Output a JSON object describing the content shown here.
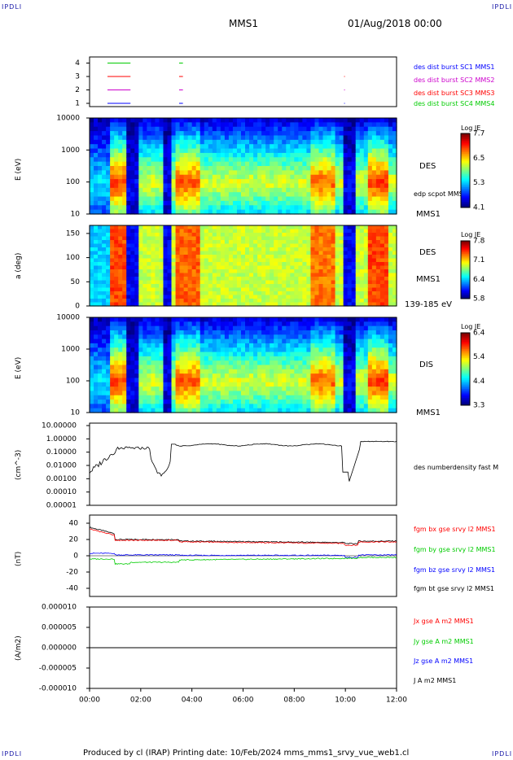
{
  "corners": {
    "tl": "IPDLI",
    "tr": "IPDLI",
    "bl": "IPDLI",
    "br": "IPDLI"
  },
  "header": {
    "title": "MMS1",
    "date": "01/Aug/2018 00:00"
  },
  "footer": "Produced by cl (IRAP)   Printing date: 10/Feb/2024   mms_mms1_srvy_vue_web1.cl",
  "colors": {
    "black": "#000000",
    "red": "#ff0000",
    "green": "#00cc00",
    "blue": "#0000ff",
    "magenta": "#cc00cc"
  },
  "chart_data": [
    {
      "type": "line",
      "yticks": [
        "1",
        "2",
        "3",
        "4"
      ],
      "legend": [
        {
          "name": "des dist burst SC1 MMS1",
          "color": "#0000ff"
        },
        {
          "name": "des dist burst SC2 MMS2",
          "color": "#cc00cc"
        },
        {
          "name": "des dist burst SC3 MMS3",
          "color": "#ff0000"
        },
        {
          "name": "des dist burst SC4 MMS4",
          "color": "#00cc00"
        }
      ],
      "series": [
        {
          "sc": 4,
          "color": "#00cc00",
          "intervals": [
            [
              0.7,
              1.6
            ],
            [
              3.5,
              3.65
            ]
          ]
        },
        {
          "sc": 3,
          "color": "#ff0000",
          "intervals": [
            [
              0.7,
              1.6
            ],
            [
              3.5,
              3.65
            ],
            [
              9.95,
              9.98
            ]
          ]
        },
        {
          "sc": 2,
          "color": "#cc00cc",
          "intervals": [
            [
              0.7,
              1.6
            ],
            [
              3.5,
              3.65
            ],
            [
              9.95,
              9.98
            ]
          ]
        },
        {
          "sc": 1,
          "color": "#0000ff",
          "intervals": [
            [
              0.7,
              1.6
            ],
            [
              3.5,
              3.65
            ],
            [
              9.95,
              9.98
            ]
          ]
        }
      ]
    },
    {
      "type": "heatmap",
      "ylabel": "E (eV)",
      "side_label": "DES",
      "sub_label": "edp scpot MMS1",
      "bottom_label": "MMS1",
      "yticks": [
        "10000",
        "1000",
        "100",
        "10"
      ],
      "colorbar": {
        "title": "Log JE",
        "ticks": [
          "7.7",
          "6.5",
          "5.3",
          "4.1"
        ]
      }
    },
    {
      "type": "heatmap",
      "ylabel": "a (deg)",
      "side_label": "DES",
      "sub_label": "MMS1",
      "bottom_label": "139-185 eV",
      "yticks": [
        "150",
        "100",
        "50",
        "0"
      ],
      "colorbar": {
        "title": "Log JE",
        "ticks": [
          "7.8",
          "7.1",
          "6.4",
          "5.8"
        ]
      }
    },
    {
      "type": "heatmap",
      "ylabel": "E (eV)",
      "side_label": "DIS",
      "bottom_label": "MMS1",
      "yticks": [
        "10000",
        "1000",
        "100",
        "10"
      ],
      "colorbar": {
        "title": "Log JE",
        "ticks": [
          "6.4",
          "5.4",
          "4.4",
          "3.3"
        ]
      }
    },
    {
      "type": "line",
      "ylabel": "(cm^-3)",
      "scale": "log",
      "yticks": [
        "10.00000",
        "1.00000",
        "0.10000",
        "0.01000",
        "0.00100",
        "0.00010",
        "0.00001"
      ],
      "series": [
        {
          "name": "des numberdensity fast M",
          "color": "#000000"
        }
      ]
    },
    {
      "type": "line",
      "ylabel": "(nT)",
      "ylim": [
        -50,
        50
      ],
      "yticks": [
        "40",
        "20",
        "0",
        "-20",
        "-40"
      ],
      "series": [
        {
          "name": "fgm bx gse srvy l2 MMS1",
          "color": "#ff0000"
        },
        {
          "name": "fgm by gse srvy l2 MMS1",
          "color": "#00cc00"
        },
        {
          "name": "fgm bz gse srvy l2 MMS1",
          "color": "#0000ff"
        },
        {
          "name": "fgm bt gse srvy l2 MMS1",
          "color": "#000000"
        }
      ]
    },
    {
      "type": "line",
      "ylabel": "(A/m2)",
      "ylim": [
        -1e-05,
        1e-05
      ],
      "yticks": [
        "0.000010",
        "0.000005",
        "0.000000",
        "-0.000005",
        "-0.000010"
      ],
      "xticks": [
        "00:00",
        "02:00",
        "04:00",
        "06:00",
        "08:00",
        "10:00",
        "12:00"
      ],
      "series": [
        {
          "name": "Jx gse A m2 MMS1",
          "color": "#ff0000"
        },
        {
          "name": "Jy gse A m2 MMS1",
          "color": "#00cc00"
        },
        {
          "name": "Jz gse A m2 MMS1",
          "color": "#0000ff"
        },
        {
          "name": "J A m2 MMS1",
          "color": "#000000"
        }
      ]
    }
  ]
}
